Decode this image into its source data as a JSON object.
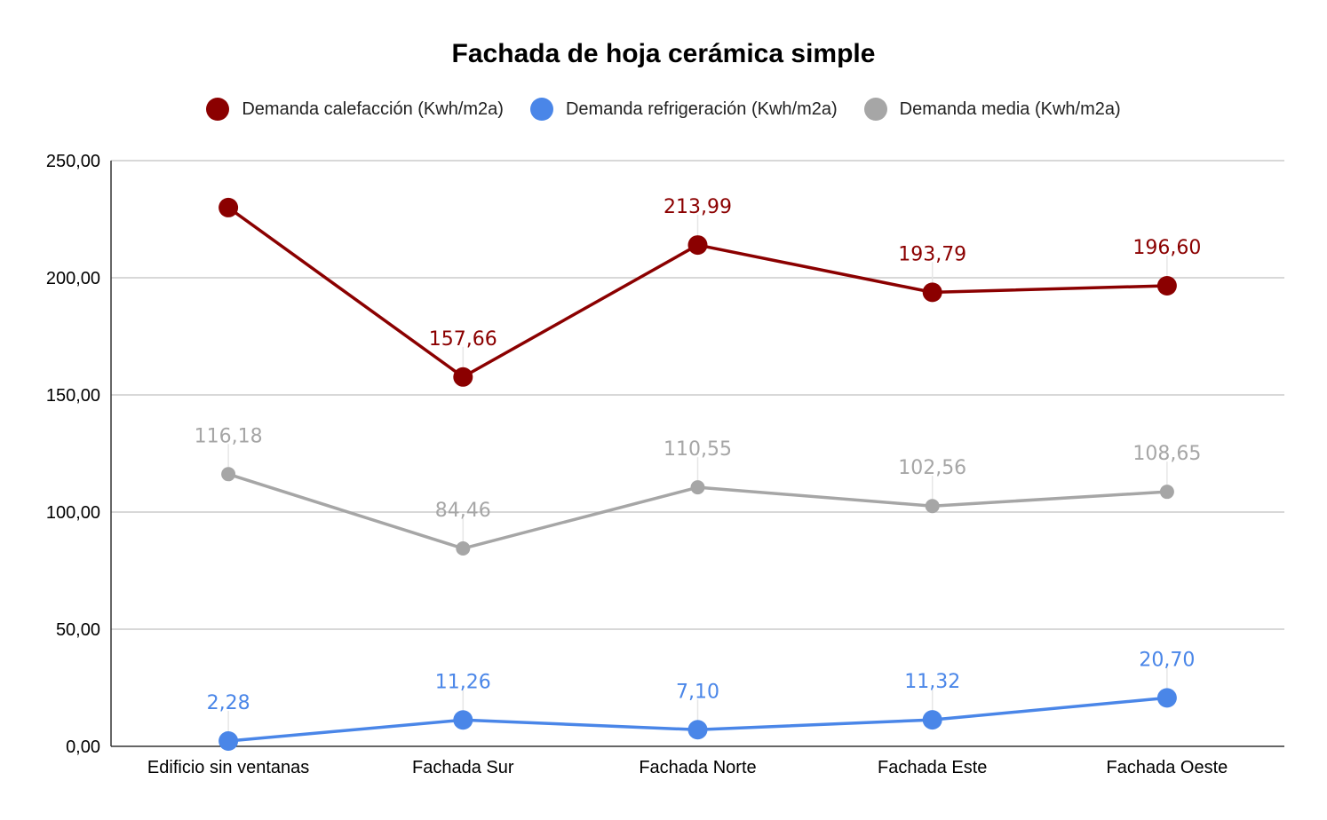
{
  "chart_data": {
    "type": "line",
    "title": "Fachada de hoja cerámica simple",
    "categories": [
      "Edificio sin ventanas",
      "Fachada Sur",
      "Fachada Norte",
      "Fachada Este",
      "Fachada Oeste"
    ],
    "ylim": [
      0,
      250
    ],
    "yticks": [
      0,
      50,
      100,
      150,
      200,
      250
    ],
    "ytick_labels": [
      "0,00",
      "50,00",
      "100,00",
      "150,00",
      "200,00",
      "250,00"
    ],
    "grid": true,
    "legend_position": "top",
    "series": [
      {
        "name": "Demanda calefacción (Kwh/m2a)",
        "color": "#8b0000",
        "values": [
          229.95,
          157.66,
          213.99,
          193.79,
          196.6
        ],
        "labels": [
          "",
          "157,66",
          "213,99",
          "193,79",
          "196,60"
        ],
        "marker_size": "large"
      },
      {
        "name": "Demanda refrigeración (Kwh/m2a)",
        "color": "#4a86e8",
        "values": [
          2.28,
          11.26,
          7.1,
          11.32,
          20.7
        ],
        "labels": [
          "2,28",
          "11,26",
          "7,10",
          "11,32",
          "20,70"
        ],
        "marker_size": "large"
      },
      {
        "name": "Demanda media (Kwh/m2a)",
        "color": "#a6a6a6",
        "values": [
          116.18,
          84.46,
          110.55,
          102.56,
          108.65
        ],
        "labels": [
          "116,18",
          "84,46",
          "110,55",
          "102,56",
          "108,65"
        ],
        "marker_size": "small"
      }
    ]
  }
}
